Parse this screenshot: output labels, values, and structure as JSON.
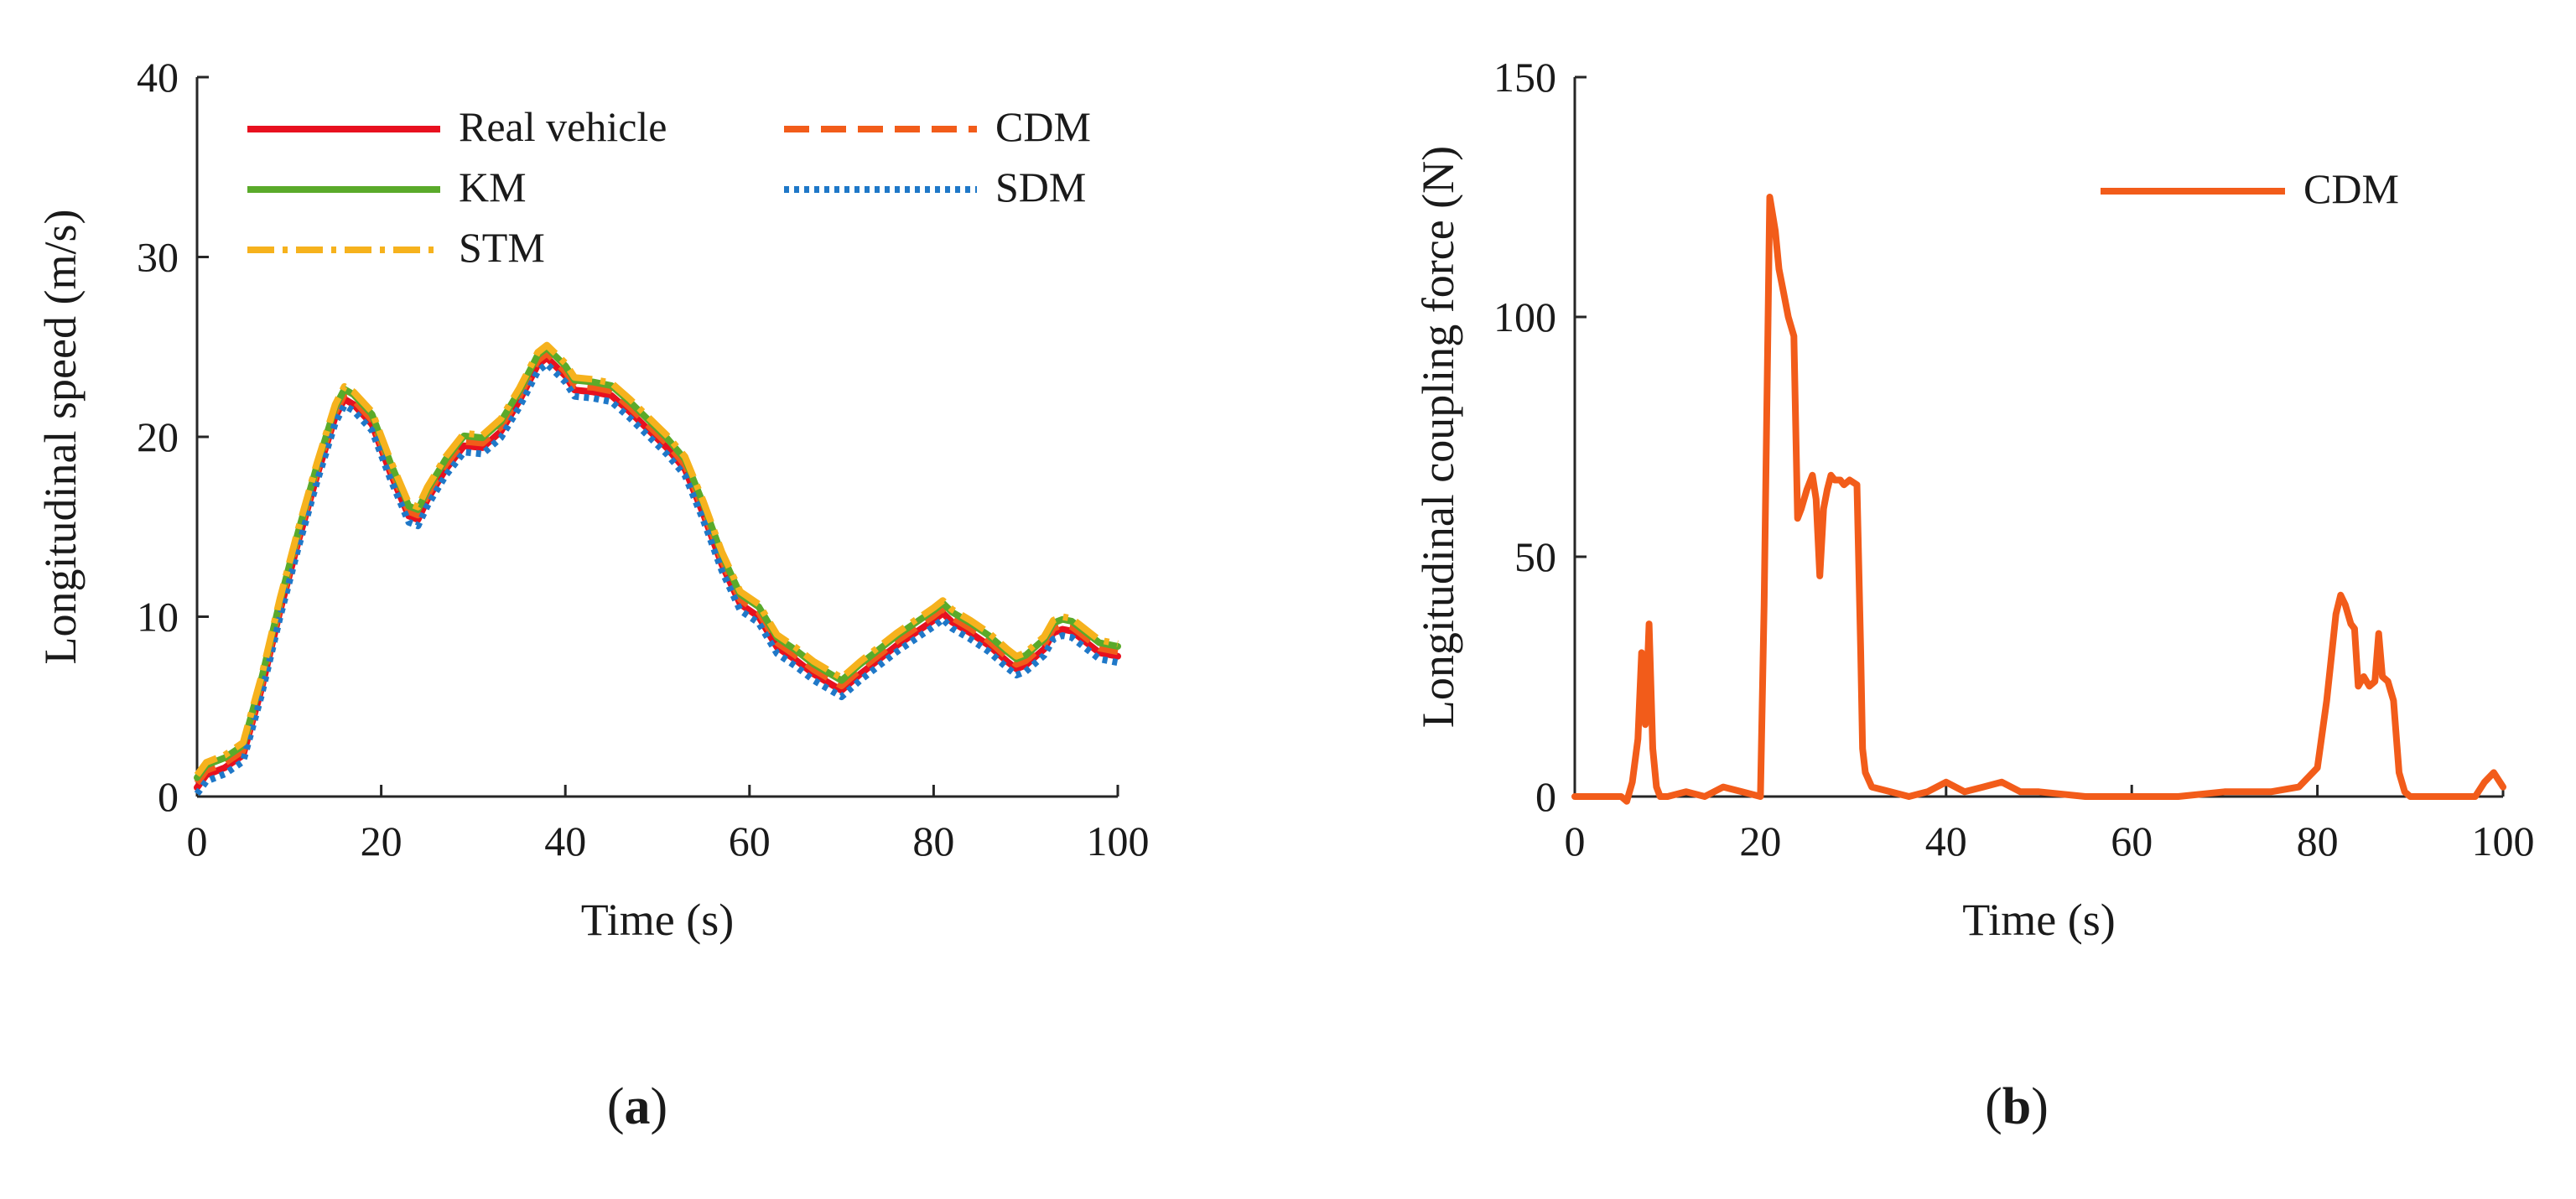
{
  "colors": {
    "real": "#e8101f",
    "km": "#5aaa2a",
    "stm": "#f6b21d",
    "cdm": "#f25c1a",
    "sdm": "#1f78c8",
    "axis": "#262626"
  },
  "chart_data": [
    {
      "type": "line",
      "panel": "a",
      "caption_label": "a",
      "xlabel": "Time (s)",
      "ylabel": "Longitudinal speed (m/s)",
      "xlim": [
        0,
        100
      ],
      "ylim": [
        0,
        40
      ],
      "xticks": [
        0,
        20,
        40,
        60,
        80,
        100
      ],
      "yticks": [
        0,
        10,
        20,
        30,
        40
      ],
      "legend_location": "top-left",
      "x": [
        0,
        1,
        3,
        5,
        7,
        9,
        11,
        13,
        15,
        16,
        17,
        19,
        21,
        23,
        24,
        25,
        27,
        29,
        31,
        33,
        35,
        37,
        38,
        40,
        41,
        43,
        45,
        47,
        49,
        51,
        53,
        55,
        57,
        59,
        61,
        63,
        65,
        67,
        69,
        70,
        72,
        74,
        76,
        78,
        80,
        81,
        82,
        84,
        86,
        88,
        89,
        90,
        92,
        93,
        94,
        95,
        96,
        98,
        100
      ],
      "series": [
        {
          "name": "Real vehicle",
          "color_key": "real",
          "dash": "solid",
          "offset": 0,
          "values": [
            0.5,
            1.2,
            1.6,
            2.3,
            6.0,
            10.3,
            14.2,
            17.8,
            21.1,
            22.1,
            21.8,
            20.7,
            18.0,
            15.6,
            15.4,
            16.5,
            18.2,
            19.5,
            19.4,
            20.3,
            22.0,
            24.0,
            24.4,
            23.4,
            22.6,
            22.5,
            22.3,
            21.4,
            20.4,
            19.4,
            18.2,
            15.7,
            12.9,
            10.7,
            10.0,
            8.3,
            7.6,
            6.8,
            6.2,
            5.9,
            6.8,
            7.6,
            8.4,
            9.1,
            9.8,
            10.2,
            9.7,
            9.1,
            8.4,
            7.5,
            7.1,
            7.3,
            8.2,
            9.1,
            9.3,
            9.2,
            8.8,
            8.0,
            7.8
          ]
        },
        {
          "name": "CDM",
          "color_key": "cdm",
          "dash": "dashed",
          "offset": 0.25,
          "values": [
            0.5,
            1.2,
            1.6,
            2.3,
            6.0,
            10.3,
            14.2,
            17.8,
            21.1,
            22.1,
            21.8,
            20.7,
            18.0,
            15.6,
            15.4,
            16.5,
            18.2,
            19.5,
            19.4,
            20.3,
            22.0,
            24.0,
            24.4,
            23.4,
            22.6,
            22.5,
            22.3,
            21.4,
            20.4,
            19.4,
            18.2,
            15.7,
            12.9,
            10.7,
            10.0,
            8.3,
            7.6,
            6.8,
            6.2,
            5.9,
            6.8,
            7.6,
            8.4,
            9.1,
            9.8,
            10.2,
            9.7,
            9.1,
            8.4,
            7.5,
            7.1,
            7.3,
            8.2,
            9.1,
            9.3,
            9.2,
            8.8,
            8.0,
            7.8
          ]
        },
        {
          "name": "KM",
          "color_key": "km",
          "dash": "solid",
          "offset": 0.55,
          "values": [
            0.5,
            1.2,
            1.6,
            2.3,
            6.0,
            10.3,
            14.2,
            17.8,
            21.1,
            22.1,
            21.8,
            20.7,
            18.0,
            15.6,
            15.4,
            16.5,
            18.2,
            19.5,
            19.4,
            20.3,
            22.0,
            24.0,
            24.4,
            23.4,
            22.6,
            22.5,
            22.3,
            21.4,
            20.4,
            19.4,
            18.2,
            15.7,
            12.9,
            10.7,
            10.0,
            8.3,
            7.6,
            6.8,
            6.2,
            5.9,
            6.8,
            7.6,
            8.4,
            9.1,
            9.8,
            10.2,
            9.7,
            9.1,
            8.4,
            7.5,
            7.1,
            7.3,
            8.2,
            9.1,
            9.3,
            9.2,
            8.8,
            8.0,
            7.8
          ]
        },
        {
          "name": "SDM",
          "color_key": "sdm",
          "dash": "dotted",
          "offset": -0.35,
          "values": [
            0.5,
            1.2,
            1.6,
            2.3,
            6.0,
            10.3,
            14.2,
            17.8,
            21.1,
            22.1,
            21.8,
            20.7,
            18.0,
            15.6,
            15.4,
            16.5,
            18.2,
            19.5,
            19.4,
            20.3,
            22.0,
            24.0,
            24.4,
            23.4,
            22.6,
            22.5,
            22.3,
            21.4,
            20.4,
            19.4,
            18.2,
            15.7,
            12.9,
            10.7,
            10.0,
            8.3,
            7.6,
            6.8,
            6.2,
            5.9,
            6.8,
            7.6,
            8.4,
            9.1,
            9.8,
            10.2,
            9.7,
            9.1,
            8.4,
            7.5,
            7.1,
            7.3,
            8.2,
            9.1,
            9.3,
            9.2,
            8.8,
            8.0,
            7.8
          ]
        },
        {
          "name": "STM",
          "color_key": "stm",
          "dash": "dashdot",
          "offset": 0.7,
          "values": [
            0.5,
            1.2,
            1.6,
            2.3,
            6.0,
            10.3,
            14.2,
            17.8,
            21.1,
            22.1,
            21.8,
            20.7,
            18.0,
            15.6,
            15.4,
            16.5,
            18.2,
            19.5,
            19.4,
            20.3,
            22.0,
            24.0,
            24.4,
            23.4,
            22.6,
            22.5,
            22.3,
            21.4,
            20.4,
            19.4,
            18.2,
            15.7,
            12.9,
            10.7,
            10.0,
            8.3,
            7.6,
            6.8,
            6.2,
            5.9,
            6.8,
            7.6,
            8.4,
            9.1,
            9.8,
            10.2,
            9.7,
            9.1,
            8.4,
            7.5,
            7.1,
            7.3,
            8.2,
            9.1,
            9.3,
            9.2,
            8.8,
            8.0,
            7.8
          ]
        }
      ],
      "legend_order": [
        "Real vehicle",
        "CDM",
        "KM",
        "SDM",
        "STM"
      ]
    },
    {
      "type": "line",
      "panel": "b",
      "caption_label": "b",
      "xlabel": "Time (s)",
      "ylabel": "Longitudinal coupling force (N)",
      "xlim": [
        0,
        100
      ],
      "ylim": [
        0,
        150
      ],
      "xticks": [
        0,
        20,
        40,
        60,
        80,
        100
      ],
      "yticks": [
        0,
        50,
        100,
        150
      ],
      "legend_location": "top-right",
      "series": [
        {
          "name": "CDM",
          "color_key": "cdm",
          "dash": "solid",
          "x": [
            0,
            4,
            5,
            5.6,
            6.2,
            6.8,
            7.2,
            7.6,
            8.0,
            8.4,
            8.8,
            9.2,
            10,
            12,
            14,
            16,
            18,
            20,
            20.4,
            21.0,
            21.6,
            22.0,
            22.5,
            23.0,
            23.6,
            24.0,
            24.4,
            25.0,
            25.6,
            26.0,
            26.4,
            26.8,
            27.2,
            27.6,
            28.0,
            28.6,
            29.0,
            29.6,
            30.4,
            30.8,
            31.0,
            31.3,
            32,
            34,
            36,
            38,
            40,
            42,
            44,
            46,
            48,
            50,
            55,
            60,
            65,
            70,
            75,
            78,
            80,
            81,
            82,
            82.5,
            83,
            83.6,
            84,
            84.4,
            85,
            85.6,
            86.2,
            86.6,
            87.0,
            87.6,
            88.2,
            88.8,
            89.4,
            90,
            92,
            95,
            97,
            98,
            99,
            100
          ],
          "values": [
            0,
            0,
            0,
            -1,
            3,
            12,
            30,
            15,
            36,
            10,
            2,
            0,
            0,
            1,
            0,
            2,
            1,
            0,
            40,
            125,
            118,
            110,
            105,
            100,
            96,
            58,
            60,
            64,
            67,
            62,
            46,
            60,
            64,
            67,
            66,
            66,
            65,
            66,
            65,
            30,
            10,
            5,
            2,
            1,
            0,
            1,
            3,
            1,
            2,
            3,
            1,
            1,
            0,
            0,
            0,
            1,
            1,
            2,
            6,
            20,
            38,
            42,
            40,
            36,
            35,
            23,
            25,
            23,
            24,
            34,
            25,
            24,
            20,
            5,
            1,
            0,
            0,
            0,
            0,
            3,
            5,
            2
          ]
        }
      ],
      "legend_order": [
        "CDM"
      ]
    }
  ]
}
